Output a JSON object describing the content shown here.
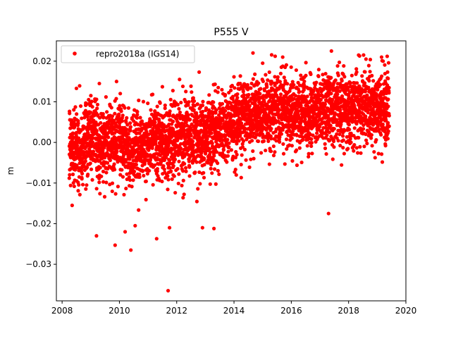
{
  "chart_data": {
    "type": "scatter",
    "title": "P555 V",
    "xlabel": "",
    "ylabel": "m",
    "xlim": [
      2007.8,
      2020.0
    ],
    "ylim": [
      -0.039,
      0.025
    ],
    "xticks": [
      2008,
      2010,
      2012,
      2014,
      2016,
      2018,
      2020
    ],
    "xtick_labels": [
      "2008",
      "2010",
      "2012",
      "2014",
      "2016",
      "2018",
      "2020"
    ],
    "yticks": [
      -0.03,
      -0.02,
      -0.01,
      0.0,
      0.01,
      0.02
    ],
    "ytick_labels": [
      "−0.03",
      "−0.02",
      "−0.01",
      "0.00",
      "0.01",
      "0.02"
    ],
    "grid": false,
    "legend_location": "upper left",
    "series": [
      {
        "name": "repro2018a (IGS14)",
        "color": "#ff0000",
        "marker": "circle",
        "x_range": [
          2008.25,
          2019.42
        ],
        "density": "daily",
        "sample_points": [
          [
            2008.3,
            0.0
          ],
          [
            2008.6,
            -0.002
          ],
          [
            2009.0,
            0.002
          ],
          [
            2009.5,
            -0.001
          ],
          [
            2010.0,
            0.001
          ],
          [
            2010.5,
            -0.002
          ],
          [
            2011.0,
            0.0
          ],
          [
            2011.5,
            -0.001
          ],
          [
            2012.0,
            0.001
          ],
          [
            2012.5,
            0.002
          ],
          [
            2013.0,
            0.001
          ],
          [
            2013.5,
            0.003
          ],
          [
            2014.0,
            0.005
          ],
          [
            2014.5,
            0.007
          ],
          [
            2015.0,
            0.007
          ],
          [
            2015.5,
            0.008
          ],
          [
            2016.0,
            0.008
          ],
          [
            2016.5,
            0.007
          ],
          [
            2017.0,
            0.008
          ],
          [
            2017.5,
            0.008
          ],
          [
            2018.0,
            0.008
          ],
          [
            2018.5,
            0.009
          ],
          [
            2019.0,
            0.008
          ],
          [
            2019.4,
            0.008
          ]
        ],
        "outliers": [
          [
            2011.7,
            -0.0365
          ],
          [
            2010.4,
            -0.0265
          ],
          [
            2009.85,
            -0.0253
          ],
          [
            2009.2,
            -0.023
          ],
          [
            2011.3,
            -0.0237
          ],
          [
            2010.2,
            -0.022
          ],
          [
            2010.55,
            -0.0205
          ],
          [
            2011.75,
            -0.021
          ],
          [
            2012.9,
            -0.021
          ],
          [
            2013.3,
            -0.0212
          ],
          [
            2017.3,
            -0.0175
          ],
          [
            2008.35,
            -0.0155
          ],
          [
            2017.4,
            0.0225
          ],
          [
            2018.35,
            0.0215
          ],
          [
            2019.15,
            0.021
          ],
          [
            2015.7,
            0.021
          ],
          [
            2015.0,
            0.0195
          ],
          [
            2009.9,
            0.015
          ],
          [
            2012.1,
            0.0155
          ],
          [
            2009.3,
            0.0145
          ],
          [
            2008.5,
            0.0133
          ],
          [
            2011.5,
            0.0137
          ],
          [
            2013.45,
            0.0135
          ]
        ]
      }
    ]
  }
}
